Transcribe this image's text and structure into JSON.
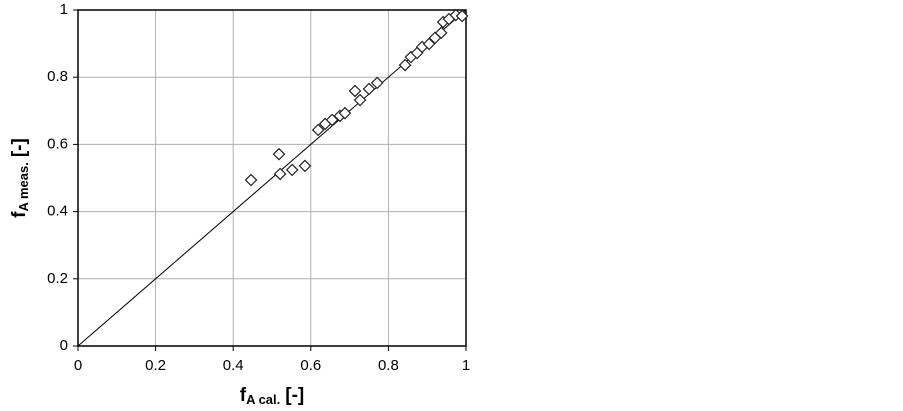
{
  "chart_data": {
    "type": "scatter",
    "x_label": {
      "main": "f",
      "sub": "A cal.",
      "unit": "[-]"
    },
    "y_label": {
      "main": "f",
      "sub": "A meas.",
      "unit": "[-]"
    },
    "x": [
      0.446,
      0.518,
      0.521,
      0.552,
      0.585,
      0.619,
      0.637,
      0.655,
      0.675,
      0.688,
      0.714,
      0.727,
      0.75,
      0.771,
      0.843,
      0.858,
      0.874,
      0.887,
      0.905,
      0.92,
      0.936,
      0.941,
      0.956,
      0.974,
      0.99
    ],
    "values": [
      0.494,
      0.571,
      0.512,
      0.524,
      0.536,
      0.643,
      0.661,
      0.673,
      0.685,
      0.693,
      0.759,
      0.732,
      0.765,
      0.783,
      0.836,
      0.86,
      0.872,
      0.89,
      0.899,
      0.917,
      0.932,
      0.964,
      0.973,
      0.985,
      0.982
    ],
    "color": "#222222",
    "xlim": [
      0,
      1
    ],
    "ylim": [
      0,
      1
    ],
    "xticks": [
      0,
      0.2,
      0.4,
      0.6,
      0.8,
      1
    ],
    "yticks": [
      0,
      0.2,
      0.4,
      0.6,
      0.8,
      1
    ],
    "grid": true
  }
}
